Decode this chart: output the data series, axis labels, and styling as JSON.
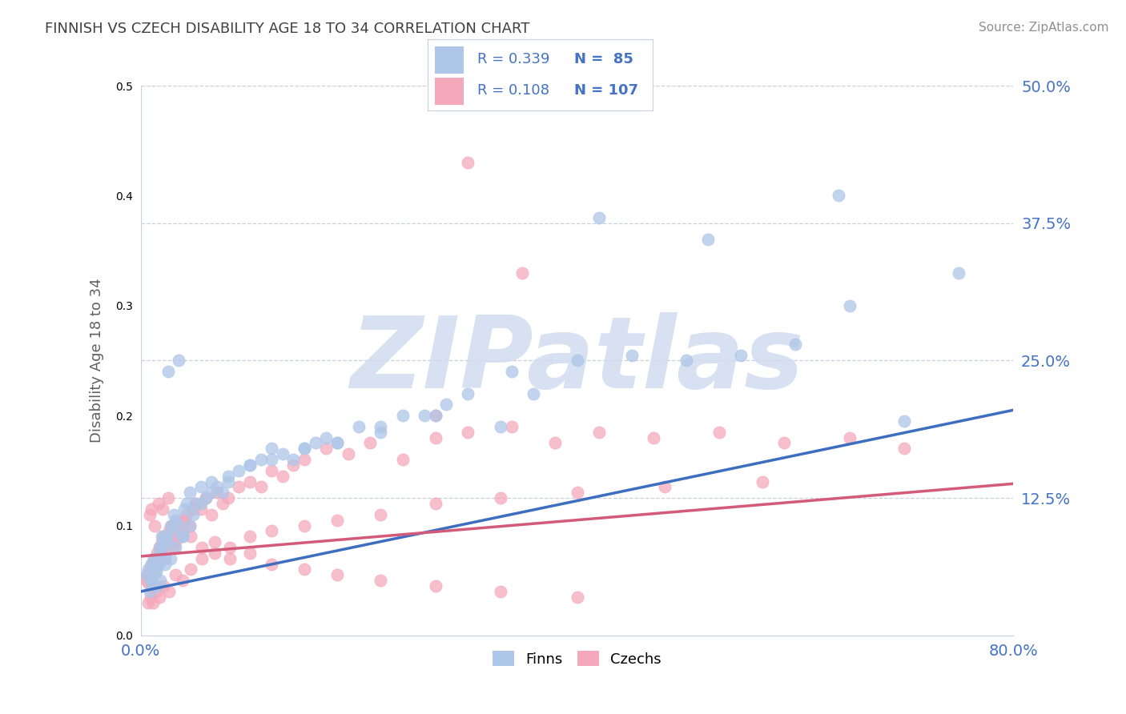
{
  "title": "FINNISH VS CZECH DISABILITY AGE 18 TO 34 CORRELATION CHART",
  "source": "Source: ZipAtlas.com",
  "ylabel": "Disability Age 18 to 34",
  "xlim": [
    0.0,
    0.8
  ],
  "ylim": [
    0.0,
    0.5
  ],
  "yticks": [
    0.0,
    0.125,
    0.25,
    0.375,
    0.5
  ],
  "ytick_labels": [
    "",
    "12.5%",
    "25.0%",
    "37.5%",
    "50.0%"
  ],
  "finn_color": "#aec6e8",
  "czech_color": "#f5a8bb",
  "finn_line_color": "#3d6ebf",
  "czech_line_color": "#d45a7a",
  "finn_R": 0.339,
  "finn_N": 85,
  "czech_R": 0.108,
  "czech_N": 107,
  "finn_line_x0": 0.0,
  "finn_line_y0": 0.04,
  "finn_line_x1": 0.8,
  "finn_line_y1": 0.205,
  "czech_line_x0": 0.0,
  "czech_line_y0": 0.072,
  "czech_line_x1": 0.8,
  "czech_line_y1": 0.138,
  "watermark_text": "ZIPatlas",
  "watermark_color": "#d0dcf0",
  "title_color": "#404040",
  "ylabel_color": "#606060",
  "tick_label_color": "#4472c4",
  "grid_color": "#c8d0dc",
  "legend_finn_label": "Finns",
  "legend_czech_label": "Czechs",
  "finn_points_x": [
    0.005,
    0.007,
    0.009,
    0.01,
    0.012,
    0.013,
    0.014,
    0.015,
    0.016,
    0.017,
    0.018,
    0.019,
    0.02,
    0.021,
    0.022,
    0.023,
    0.025,
    0.027,
    0.028,
    0.03,
    0.032,
    0.035,
    0.038,
    0.04,
    0.042,
    0.045,
    0.048,
    0.05,
    0.055,
    0.06,
    0.065,
    0.07,
    0.075,
    0.08,
    0.09,
    0.1,
    0.11,
    0.12,
    0.13,
    0.14,
    0.15,
    0.16,
    0.17,
    0.18,
    0.2,
    0.22,
    0.24,
    0.26,
    0.28,
    0.3,
    0.33,
    0.36,
    0.4,
    0.45,
    0.5,
    0.55,
    0.6,
    0.65,
    0.7,
    0.008,
    0.01,
    0.012,
    0.015,
    0.018,
    0.022,
    0.027,
    0.032,
    0.038,
    0.045,
    0.055,
    0.065,
    0.08,
    0.1,
    0.12,
    0.15,
    0.18,
    0.22,
    0.27,
    0.34,
    0.42,
    0.52,
    0.64,
    0.75,
    0.025,
    0.035
  ],
  "finn_points_y": [
    0.055,
    0.06,
    0.05,
    0.065,
    0.07,
    0.06,
    0.058,
    0.07,
    0.065,
    0.08,
    0.075,
    0.09,
    0.08,
    0.085,
    0.07,
    0.09,
    0.085,
    0.1,
    0.095,
    0.11,
    0.105,
    0.1,
    0.09,
    0.115,
    0.12,
    0.13,
    0.11,
    0.12,
    0.135,
    0.125,
    0.14,
    0.135,
    0.13,
    0.14,
    0.15,
    0.155,
    0.16,
    0.17,
    0.165,
    0.16,
    0.17,
    0.175,
    0.18,
    0.175,
    0.19,
    0.19,
    0.2,
    0.2,
    0.21,
    0.22,
    0.19,
    0.22,
    0.25,
    0.255,
    0.25,
    0.255,
    0.265,
    0.3,
    0.195,
    0.04,
    0.05,
    0.055,
    0.045,
    0.05,
    0.065,
    0.07,
    0.08,
    0.09,
    0.1,
    0.12,
    0.13,
    0.145,
    0.155,
    0.16,
    0.17,
    0.175,
    0.185,
    0.2,
    0.24,
    0.38,
    0.36,
    0.4,
    0.33,
    0.24,
    0.25
  ],
  "czech_points_x": [
    0.005,
    0.006,
    0.007,
    0.008,
    0.009,
    0.01,
    0.011,
    0.012,
    0.013,
    0.014,
    0.015,
    0.016,
    0.017,
    0.018,
    0.019,
    0.02,
    0.021,
    0.022,
    0.023,
    0.024,
    0.025,
    0.026,
    0.027,
    0.028,
    0.03,
    0.032,
    0.034,
    0.036,
    0.038,
    0.04,
    0.042,
    0.045,
    0.048,
    0.05,
    0.055,
    0.06,
    0.065,
    0.07,
    0.075,
    0.08,
    0.09,
    0.1,
    0.11,
    0.12,
    0.13,
    0.14,
    0.15,
    0.17,
    0.19,
    0.21,
    0.24,
    0.27,
    0.3,
    0.34,
    0.38,
    0.42,
    0.47,
    0.53,
    0.59,
    0.65,
    0.7,
    0.007,
    0.009,
    0.011,
    0.014,
    0.017,
    0.021,
    0.026,
    0.032,
    0.038,
    0.046,
    0.056,
    0.068,
    0.082,
    0.1,
    0.12,
    0.15,
    0.18,
    0.22,
    0.27,
    0.33,
    0.4,
    0.48,
    0.57,
    0.008,
    0.01,
    0.013,
    0.016,
    0.02,
    0.025,
    0.03,
    0.038,
    0.046,
    0.056,
    0.068,
    0.082,
    0.1,
    0.12,
    0.15,
    0.18,
    0.22,
    0.27,
    0.33,
    0.4,
    0.3,
    0.35,
    0.27
  ],
  "czech_points_y": [
    0.05,
    0.055,
    0.048,
    0.06,
    0.055,
    0.065,
    0.058,
    0.07,
    0.065,
    0.06,
    0.075,
    0.07,
    0.08,
    0.075,
    0.085,
    0.08,
    0.09,
    0.085,
    0.075,
    0.09,
    0.085,
    0.095,
    0.09,
    0.1,
    0.08,
    0.085,
    0.09,
    0.1,
    0.095,
    0.105,
    0.11,
    0.1,
    0.115,
    0.12,
    0.115,
    0.125,
    0.11,
    0.13,
    0.12,
    0.125,
    0.135,
    0.14,
    0.135,
    0.15,
    0.145,
    0.155,
    0.16,
    0.17,
    0.165,
    0.175,
    0.16,
    0.18,
    0.185,
    0.19,
    0.175,
    0.185,
    0.18,
    0.185,
    0.175,
    0.18,
    0.17,
    0.03,
    0.035,
    0.03,
    0.04,
    0.035,
    0.045,
    0.04,
    0.055,
    0.05,
    0.06,
    0.07,
    0.075,
    0.08,
    0.09,
    0.095,
    0.1,
    0.105,
    0.11,
    0.12,
    0.125,
    0.13,
    0.135,
    0.14,
    0.11,
    0.115,
    0.1,
    0.12,
    0.115,
    0.125,
    0.1,
    0.105,
    0.09,
    0.08,
    0.085,
    0.07,
    0.075,
    0.065,
    0.06,
    0.055,
    0.05,
    0.045,
    0.04,
    0.035,
    0.43,
    0.33,
    0.2
  ]
}
